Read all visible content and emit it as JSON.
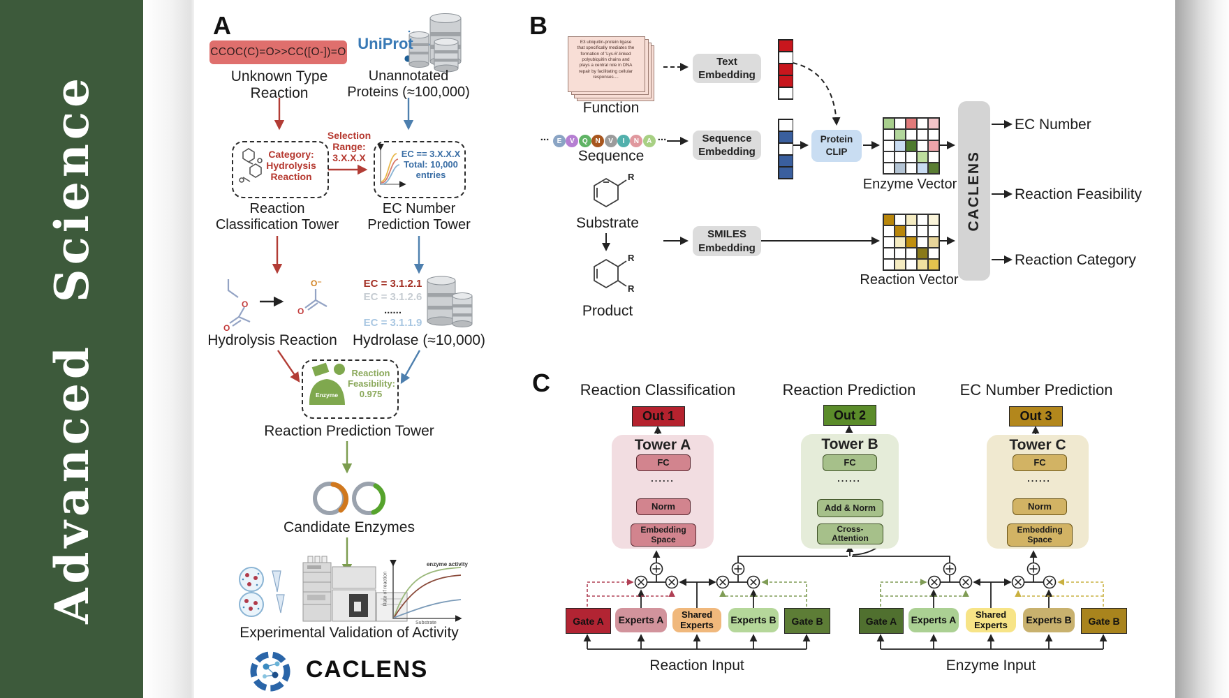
{
  "sidebar": {
    "title": "Advanced  Science",
    "bg_color": "#3d5a3b"
  },
  "panelA": {
    "label": "A",
    "smiles": "CCOC(C)=O>>CC([O-])=O",
    "unknown_reaction": "Unknown Type\nReaction",
    "uniprot": "UniProt",
    "unannotated": "Unannotated\nProteins (≈100,000)",
    "selection": "Selection\nRange:\n3.X.X.X",
    "category": "Category:\nHydrolysis\nReaction",
    "ec_filter": "EC == 3.X.X.X\nTotal: 10,000\nentries",
    "classification_tower": "Reaction\nClassification Tower",
    "ec_tower": "EC Number\nPrediction Tower",
    "ec_list": [
      {
        "text": "EC = 3.1.2.1",
        "color": "#a33126"
      },
      {
        "text": "EC = 3.1.2.6",
        "color": "#c6ccd2"
      },
      {
        "text": "......",
        "color": "#2a2a2a"
      },
      {
        "text": "EC = 3.1.1.9",
        "color": "#a9c7e2"
      }
    ],
    "hydrolysis": "Hydrolysis Reaction",
    "hydrolase": "Hydrolase (≈10,000)",
    "enzyme_badge": "Enzyme",
    "feasibility": "Reaction\nFeasibility:\n0.975",
    "prediction_tower": "Reaction Prediction Tower",
    "candidate": "Candidate Enzymes",
    "graph": {
      "curve_label": "enzyme activity",
      "ylabel": "Rate of reaction",
      "xlabel": "Substrate"
    },
    "validation": "Experimental Validation of Activity",
    "brand": "CACLENS"
  },
  "panelB": {
    "label": "B",
    "function_text": "E3 ubiquitin-protein ligase\nthat specifically mediates the\nformation of 'Lys-6'-linked\npolyubiquitin chains and\nplays a central role in DNA\nrepair by facilitating cellular\nresponses....",
    "function": "Function",
    "ellipsis": "...",
    "sequence": "Sequence",
    "substrate": "Substrate",
    "product": "Product",
    "r_label": "R",
    "residues": [
      {
        "letter": "E",
        "color": "#8aa4c4"
      },
      {
        "letter": "V",
        "color": "#b57fd2"
      },
      {
        "letter": "Q",
        "color": "#5fb364"
      },
      {
        "letter": "N",
        "color": "#a8561e"
      },
      {
        "letter": "V",
        "color": "#9b9b9b"
      },
      {
        "letter": "I",
        "color": "#52b0ac"
      },
      {
        "letter": "N",
        "color": "#e0989e"
      },
      {
        "letter": "A",
        "color": "#a8d084"
      }
    ],
    "text_embedding": "Text\nEmbedding",
    "sequence_embedding": "Sequence\nEmbedding",
    "smiles_embedding": "SMILES\nEmbedding",
    "protein_clip": "Protein\nCLIP",
    "text_vector": [
      "#c8161d",
      "#ffffff",
      "#c8161d",
      "#c8161d",
      "#ffffff"
    ],
    "sequence_vector": [
      "#ffffff",
      "#3a5f9e",
      "#ffffff",
      "#3a5f9e",
      "#3a5f9e"
    ],
    "enzyme_grid": [
      "#a8cf8d",
      "#ffffff",
      "#e07a7a",
      "#ffffff",
      "#f2c4c8",
      "#ffffff",
      "#b2d69c",
      "#ffffff",
      "#ffffff",
      "#ffffff",
      "#ffffff",
      "#c9dcf2",
      "#4e7a2e",
      "#ffffff",
      "#eda4aa",
      "#ffffff",
      "#ffffff",
      "#ffffff",
      "#bede9e",
      "#ffffff",
      "#ffffff",
      "#b4c4d4",
      "#ffffff",
      "#c9dcf2",
      "#5a7d33"
    ],
    "reaction_grid": [
      "#b8860b",
      "#ffffff",
      "#f5ecc2",
      "#ffffff",
      "#faf4da",
      "#ffffff",
      "#b8860b",
      "#ffffff",
      "#ffffff",
      "#ffffff",
      "#ffffff",
      "#f5ecc2",
      "#c09010",
      "#ffffff",
      "#e6d49a",
      "#ffffff",
      "#ffffff",
      "#ffffff",
      "#8a7a1a",
      "#ffffff",
      "#ffffff",
      "#f5ecc2",
      "#ffffff",
      "#f0e0a0",
      "#e3c24e"
    ],
    "enzyme_vector_label": "Enzyme Vector",
    "reaction_vector_label": "Reaction Vector",
    "caclens_bar": "CACLENS",
    "outputs": [
      "EC Number",
      "Reaction Feasibility",
      "Reaction Category"
    ]
  },
  "panelC": {
    "label": "C",
    "col1": {
      "title": "Reaction Classification",
      "out": "Out 1",
      "tower": "Tower A",
      "fc": "FC",
      "dots": "......",
      "norm": "Norm",
      "embed": "Embedding\nSpace"
    },
    "col2": {
      "title": "Reaction Prediction",
      "out": "Out 2",
      "tower": "Tower B",
      "fc": "FC",
      "dots": "......",
      "addnorm": "Add & Norm",
      "cross": "Cross-\nAttention"
    },
    "col3": {
      "title": "EC Number Prediction",
      "out": "Out 3",
      "tower": "Tower C",
      "fc": "FC",
      "dots": "......",
      "norm": "Norm",
      "embed": "Embedding\nSpace"
    },
    "moe_left": {
      "gate_a": "Gate A",
      "experts_a": "Experts A",
      "shared": "Shared\nExperts",
      "experts_b": "Experts B",
      "gate_b": "Gate B",
      "input": "Reaction Input"
    },
    "moe_right": {
      "gate_a": "Gate A",
      "experts_a": "Experts A",
      "shared": "Shared\nExperts",
      "experts_b": "Experts B",
      "gate_b": "Gate B",
      "input": "Enzyme Input"
    },
    "colors": {
      "out1": "#b5222e",
      "out2": "#5b8c2a",
      "out3": "#b3871c"
    }
  }
}
